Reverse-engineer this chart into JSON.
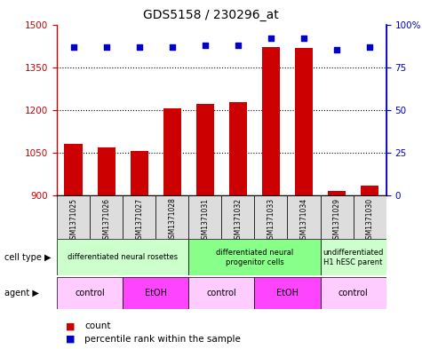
{
  "title": "GDS5158 / 230296_at",
  "samples": [
    "GSM1371025",
    "GSM1371026",
    "GSM1371027",
    "GSM1371028",
    "GSM1371031",
    "GSM1371032",
    "GSM1371033",
    "GSM1371034",
    "GSM1371029",
    "GSM1371030"
  ],
  "counts": [
    1080,
    1068,
    1055,
    1207,
    1221,
    1228,
    1420,
    1418,
    915,
    933
  ],
  "percentiles": [
    87,
    87,
    87,
    87,
    88,
    88,
    92,
    92,
    85,
    87
  ],
  "ylim_left": [
    900,
    1500
  ],
  "ylim_right": [
    0,
    100
  ],
  "yticks_left": [
    900,
    1050,
    1200,
    1350,
    1500
  ],
  "yticks_right": [
    0,
    25,
    50,
    75,
    100
  ],
  "bar_color": "#cc0000",
  "dot_color": "#0000cc",
  "cell_type_groups": [
    {
      "label": "differentiated neural rosettes",
      "start": 0,
      "end": 4,
      "color": "#ccffcc"
    },
    {
      "label": "differentiated neural\nprogenitor cells",
      "start": 4,
      "end": 8,
      "color": "#88ff88"
    },
    {
      "label": "undifferentiated\nH1 hESC parent",
      "start": 8,
      "end": 10,
      "color": "#ccffcc"
    }
  ],
  "agent_groups": [
    {
      "label": "control",
      "start": 0,
      "end": 2,
      "color": "#ffccff"
    },
    {
      "label": "EtOH",
      "start": 2,
      "end": 4,
      "color": "#ff44ff"
    },
    {
      "label": "control",
      "start": 4,
      "end": 6,
      "color": "#ffccff"
    },
    {
      "label": "EtOH",
      "start": 6,
      "end": 8,
      "color": "#ff44ff"
    },
    {
      "label": "control",
      "start": 8,
      "end": 10,
      "color": "#ffccff"
    }
  ],
  "legend_count_label": "count",
  "legend_percentile_label": "percentile rank within the sample",
  "cell_type_label": "cell type",
  "agent_label": "agent",
  "background_color": "#ffffff",
  "plot_bg_color": "#ffffff",
  "sample_bg_color": "#dddddd"
}
